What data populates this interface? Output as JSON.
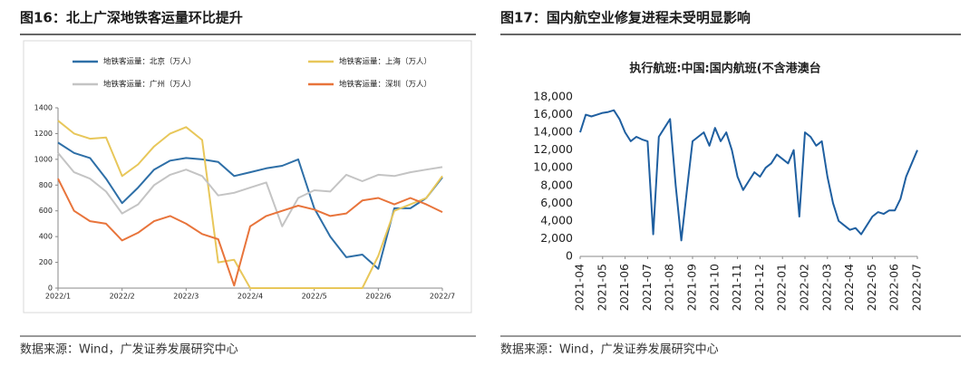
{
  "chart_data": [
    {
      "type": "line",
      "caption": "图16：北上广深地铁客运量环比提升",
      "source": "数据来源：Wind，广发证券发展研究中心",
      "categories": [
        "2022/1",
        null,
        null,
        null,
        "2022/2",
        null,
        null,
        null,
        "2022/3",
        null,
        null,
        null,
        "2022/4",
        null,
        null,
        null,
        "2022/5",
        null,
        null,
        null,
        "2022/6",
        null,
        null,
        null,
        "2022/7"
      ],
      "series": [
        {
          "name": "地铁客运量：北京（万人）",
          "color": "#2e6fa7",
          "values": [
            1130,
            1050,
            1010,
            850,
            660,
            780,
            920,
            990,
            1010,
            1000,
            980,
            870,
            900,
            930,
            950,
            1000,
            620,
            400,
            240,
            260,
            150,
            620,
            620,
            700,
            860
          ]
        },
        {
          "name": "地铁客运量：上海（万人）",
          "color": "#e8c75a",
          "values": [
            1300,
            1200,
            1160,
            1170,
            870,
            960,
            1100,
            1200,
            1250,
            1150,
            200,
            220,
            0,
            0,
            0,
            0,
            0,
            0,
            0,
            0,
            250,
            600,
            650,
            700,
            870
          ]
        },
        {
          "name": "地铁客运量：广州（万人）",
          "color": "#c4c4c4",
          "values": [
            1050,
            900,
            850,
            750,
            580,
            650,
            800,
            880,
            920,
            870,
            720,
            740,
            780,
            820,
            480,
            700,
            760,
            750,
            880,
            830,
            880,
            870,
            900,
            920,
            940
          ]
        },
        {
          "name": "地铁客运量：深圳（万人）",
          "color": "#e8743b",
          "values": [
            850,
            600,
            520,
            500,
            370,
            430,
            520,
            560,
            500,
            420,
            380,
            20,
            480,
            560,
            600,
            640,
            610,
            560,
            580,
            680,
            700,
            650,
            700,
            650,
            590
          ]
        }
      ],
      "ylim": [
        0,
        1400
      ],
      "yticks": [
        0,
        200,
        400,
        600,
        800,
        1000,
        1200,
        1400
      ]
    },
    {
      "type": "line",
      "caption": "图17：国内航空业修复进程未受明显影响",
      "source": "数据来源：Wind，广发证券发展研究中心",
      "title": "执行航班:中国:国内航班(不含港澳台",
      "color": "#1f5fa0",
      "categories": [
        "2021-04",
        null,
        null,
        null,
        "2021-05",
        null,
        null,
        null,
        "2021-06",
        null,
        null,
        null,
        "2021-07",
        null,
        null,
        null,
        "2021-08",
        null,
        null,
        null,
        "2021-09",
        null,
        null,
        null,
        "2021-10",
        null,
        null,
        null,
        "2021-11",
        null,
        null,
        null,
        "2021-12",
        null,
        null,
        null,
        "2022-01",
        null,
        null,
        null,
        "2022-02",
        null,
        null,
        null,
        "2022-03",
        null,
        null,
        null,
        "2022-04",
        null,
        null,
        null,
        "2022-05",
        null,
        null,
        null,
        "2022-06",
        null,
        null,
        null,
        "2022-07"
      ],
      "values": [
        14000,
        16000,
        15800,
        16000,
        16200,
        16300,
        16500,
        15500,
        14000,
        13000,
        13500,
        13200,
        13000,
        2500,
        13500,
        14500,
        15500,
        8000,
        1800,
        7500,
        13000,
        13500,
        14000,
        12500,
        14500,
        13000,
        14000,
        12000,
        9000,
        7500,
        8500,
        9500,
        9000,
        10000,
        10500,
        11500,
        11000,
        10500,
        12000,
        4500,
        14000,
        13500,
        12500,
        13000,
        9000,
        6000,
        4000,
        3500,
        3000,
        3200,
        2500,
        3500,
        4500,
        5000,
        4800,
        5200,
        5200,
        6500,
        9000,
        10500,
        12000
      ],
      "ylim": [
        0,
        18000
      ],
      "yticks": [
        0,
        {
          "value": 2000,
          "label": "2,000"
        },
        {
          "value": 4000,
          "label": "4,000"
        },
        {
          "value": 6000,
          "label": "6,000"
        },
        {
          "value": 8000,
          "label": "8,000"
        },
        {
          "value": 10000,
          "label": "10,000"
        },
        {
          "value": 12000,
          "label": "12,000"
        },
        {
          "value": 14000,
          "label": "14,000"
        },
        {
          "value": 16000,
          "label": "16,000"
        },
        {
          "value": 18000,
          "label": "18,000"
        }
      ]
    }
  ]
}
